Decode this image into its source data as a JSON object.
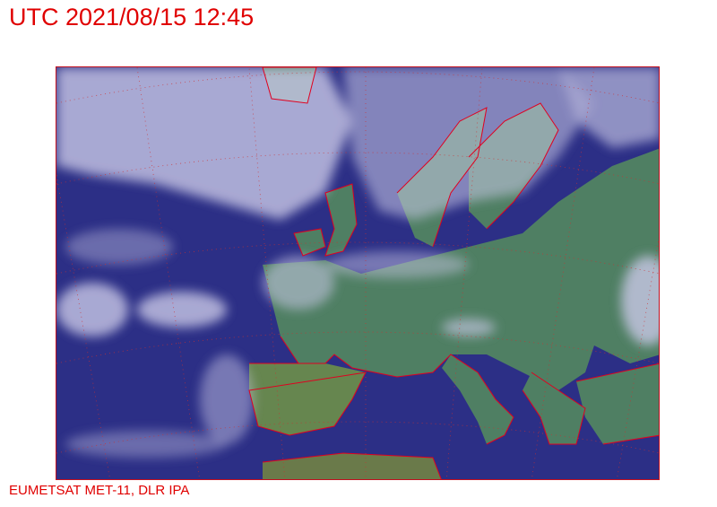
{
  "header": {
    "title": "UTC 2021/08/15 12:45"
  },
  "image": {
    "kind": "satellite-composite",
    "region": "Europe",
    "colors": {
      "ocean": "#2c2f86",
      "land": "#4f7f63",
      "cloud": "#c9c8e6",
      "coastline": "#e00020",
      "grid": "#d03030"
    }
  },
  "footer": {
    "credit": "EUMETSAT MET-11, DLR IPA"
  }
}
